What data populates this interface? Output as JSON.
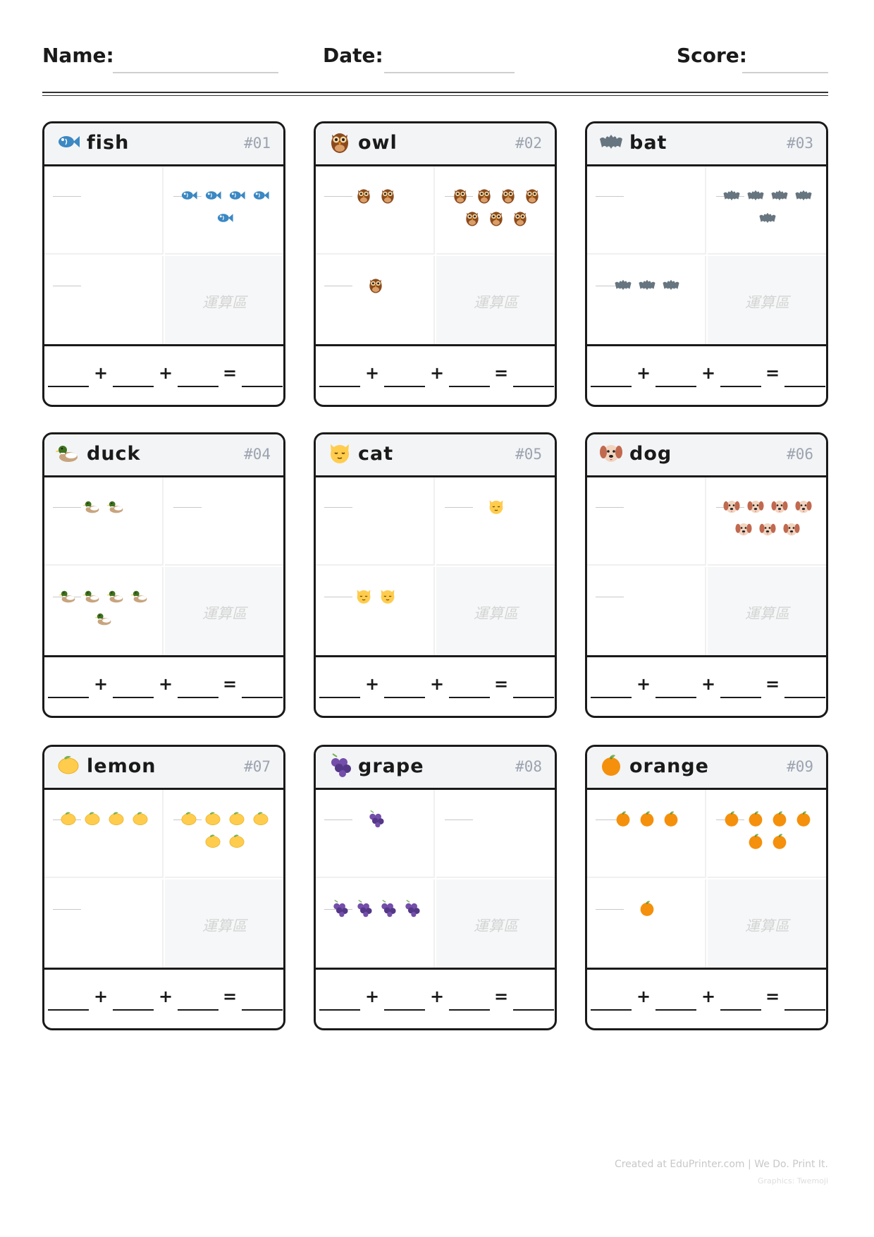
{
  "header": {
    "name_label": "Name:",
    "date_label": "Date:",
    "score_label": "Score:"
  },
  "calc_label": "運算區",
  "cards": [
    {
      "title": "fish",
      "num": "#01",
      "icon": "fish-icon",
      "groups": [
        0,
        5,
        0
      ]
    },
    {
      "title": "owl",
      "num": "#02",
      "icon": "owl-icon",
      "groups": [
        2,
        7,
        1
      ]
    },
    {
      "title": "bat",
      "num": "#03",
      "icon": "bat-icon",
      "groups": [
        0,
        5,
        3
      ]
    },
    {
      "title": "duck",
      "num": "#04",
      "icon": "duck-icon",
      "groups": [
        2,
        0,
        5
      ]
    },
    {
      "title": "cat",
      "num": "#05",
      "icon": "cat-icon",
      "groups": [
        0,
        1,
        2
      ]
    },
    {
      "title": "dog",
      "num": "#06",
      "icon": "dog-icon",
      "groups": [
        0,
        7,
        0
      ]
    },
    {
      "title": "lemon",
      "num": "#07",
      "icon": "lemon-icon",
      "groups": [
        4,
        6,
        0
      ]
    },
    {
      "title": "grape",
      "num": "#08",
      "icon": "grape-icon",
      "groups": [
        1,
        0,
        4
      ]
    },
    {
      "title": "orange",
      "num": "#09",
      "icon": "orange-icon",
      "groups": [
        3,
        6,
        1
      ]
    }
  ],
  "equation": {
    "plus1": "+",
    "plus2": "+",
    "equals": "="
  },
  "footer": {
    "credit": "Created at EduPrinter.com | We Do. Print It.",
    "graphics": "Graphics: Twemoji"
  },
  "colors": {
    "fish": "#3b88c3",
    "owl": "#8b4a1c",
    "bat": "#66757f",
    "duck": "#3e721d",
    "cat": "#ffcc4d",
    "dog": "#c1694f",
    "lemon": "#ffcc4d",
    "grape": "#744eaa",
    "orange": "#f4900c"
  }
}
